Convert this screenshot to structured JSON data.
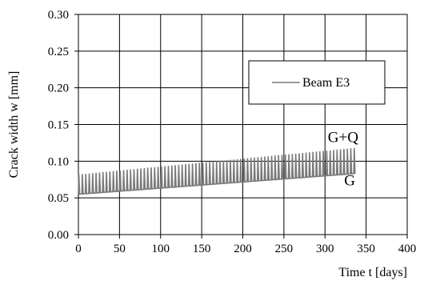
{
  "chart_data": {
    "type": "line",
    "xlabel": "Time t [days]",
    "ylabel": "Crack width w [mm]",
    "xlim": [
      0,
      400
    ],
    "ylim": [
      0.0,
      0.3
    ],
    "x_ticks": [
      "0",
      "50",
      "100",
      "150",
      "200",
      "250",
      "300",
      "350",
      "400"
    ],
    "y_ticks": [
      "0.00",
      "0.05",
      "0.10",
      "0.15",
      "0.20",
      "0.25",
      "0.30"
    ],
    "grid": true,
    "legend_position": "top-right",
    "series": [
      {
        "name": "Beam E3",
        "color": "#7a7a7a",
        "description_points": {
          "t_start": 0,
          "t_end": 335,
          "G_start": 0.055,
          "G_end": 0.083,
          "GQ_start": 0.082,
          "GQ_end": 0.118,
          "cycles": 80
        }
      }
    ],
    "annotations": [
      {
        "text": "G+Q",
        "x": 322,
        "y": 0.126
      },
      {
        "text": "G",
        "x": 330,
        "y": 0.067
      }
    ]
  }
}
